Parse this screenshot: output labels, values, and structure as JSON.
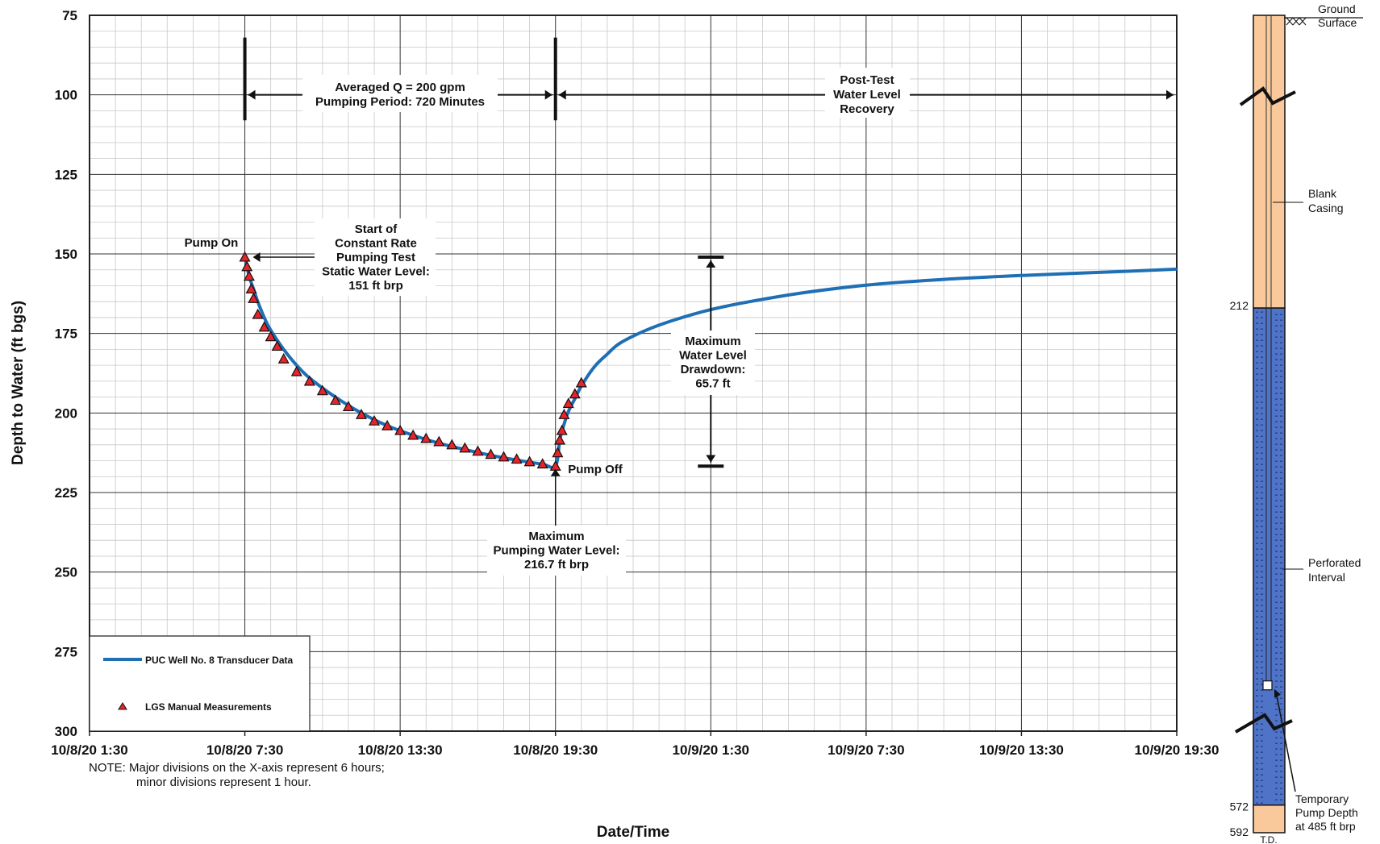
{
  "chart_data": {
    "type": "line",
    "title": "",
    "xlabel": "Date/Time",
    "ylabel": "Depth to Water (ft bgs)",
    "x_unit": "datetime",
    "xlim": [
      "2020-10-08T01:30",
      "2020-10-09T19:30"
    ],
    "ylim": [
      75,
      300
    ],
    "y_inverted": true,
    "grid": true,
    "x_ticks": [
      "10/8/20 1:30",
      "10/8/20 7:30",
      "10/8/20 13:30",
      "10/8/20 19:30",
      "10/9/20 1:30",
      "10/9/20 7:30",
      "10/9/20 13:30",
      "10/9/20 19:30"
    ],
    "y_ticks": [
      "75",
      "100",
      "125",
      "150",
      "175",
      "200",
      "225",
      "250",
      "275",
      "300"
    ],
    "series": [
      {
        "name": "PUC Well No. 8 Transducer Data",
        "style": "line",
        "color": "#1f6fb5",
        "x": [
          "2020-10-08T07:30",
          "2020-10-08T07:40",
          "2020-10-08T07:50",
          "2020-10-08T08:00",
          "2020-10-08T08:15",
          "2020-10-08T08:30",
          "2020-10-08T09:00",
          "2020-10-08T09:30",
          "2020-10-08T10:00",
          "2020-10-08T11:00",
          "2020-10-08T12:00",
          "2020-10-08T13:00",
          "2020-10-08T14:00",
          "2020-10-08T15:00",
          "2020-10-08T16:00",
          "2020-10-08T17:00",
          "2020-10-08T18:00",
          "2020-10-08T19:00",
          "2020-10-08T19:30",
          "2020-10-08T19:40",
          "2020-10-08T19:50",
          "2020-10-08T20:00",
          "2020-10-08T20:15",
          "2020-10-08T20:30",
          "2020-10-08T21:00",
          "2020-10-08T21:30",
          "2020-10-08T22:00",
          "2020-10-08T23:00",
          "2020-10-09T00:00",
          "2020-10-09T01:30",
          "2020-10-09T03:00",
          "2020-10-09T05:00",
          "2020-10-09T07:30",
          "2020-10-09T10:30",
          "2020-10-09T13:30",
          "2020-10-09T16:30",
          "2020-10-09T19:30"
        ],
        "y": [
          151,
          157,
          161,
          165,
          170,
          174,
          180,
          185,
          189,
          195,
          200,
          204,
          207,
          209.5,
          211.5,
          213.3,
          214.8,
          216.1,
          216.7,
          208.5,
          203.5,
          199.5,
          195.5,
          191.5,
          185.5,
          181.5,
          178,
          174,
          171,
          167.5,
          165,
          162.3,
          159.8,
          158,
          156.8,
          155.8,
          154.8
        ]
      },
      {
        "name": "LGS Manual Measurements",
        "style": "marker",
        "color": "#e8232a",
        "x": [
          "2020-10-08T07:30",
          "2020-10-08T07:35",
          "2020-10-08T07:40",
          "2020-10-08T07:45",
          "2020-10-08T07:50",
          "2020-10-08T08:00",
          "2020-10-08T08:15",
          "2020-10-08T08:30",
          "2020-10-08T08:45",
          "2020-10-08T09:00",
          "2020-10-08T09:30",
          "2020-10-08T10:00",
          "2020-10-08T10:30",
          "2020-10-08T11:00",
          "2020-10-08T11:30",
          "2020-10-08T12:00",
          "2020-10-08T12:30",
          "2020-10-08T13:00",
          "2020-10-08T13:30",
          "2020-10-08T14:00",
          "2020-10-08T14:30",
          "2020-10-08T15:00",
          "2020-10-08T15:30",
          "2020-10-08T16:00",
          "2020-10-08T16:30",
          "2020-10-08T17:00",
          "2020-10-08T17:30",
          "2020-10-08T18:00",
          "2020-10-08T18:30",
          "2020-10-08T19:00",
          "2020-10-08T19:30",
          "2020-10-08T19:35",
          "2020-10-08T19:40",
          "2020-10-08T19:45",
          "2020-10-08T19:50",
          "2020-10-08T20:00",
          "2020-10-08T20:15",
          "2020-10-08T20:30"
        ],
        "y": [
          151,
          154,
          157,
          161,
          164,
          169,
          173,
          176,
          179,
          183,
          187,
          190,
          193,
          196,
          198,
          200.5,
          202.5,
          204,
          205.5,
          207,
          208,
          209,
          210,
          211,
          212,
          213,
          213.8,
          214.5,
          215.3,
          216,
          216.7,
          212.5,
          208.5,
          205.5,
          200.5,
          197,
          194,
          190.5
        ]
      }
    ],
    "legend": {
      "placement": "bottom-left",
      "entries": [
        "PUC Well No. 8 Transducer Data",
        "LGS Manual Measurements"
      ]
    },
    "annotations": {
      "pump_on": "Pump On",
      "start_test": [
        "Start of",
        "Constant Rate",
        "Pumping Test",
        "Static Water Level:",
        "151 ft brp"
      ],
      "pump_off": "Pump Off",
      "max_pumping": [
        "Maximum",
        "Pumping Water Level:",
        "216.7 ft brp"
      ],
      "averaged_q": [
        "Averaged Q = 200 gpm",
        "Pumping Period: 720 Minutes"
      ],
      "post_test": [
        "Post-Test",
        "Water Level",
        "Recovery"
      ],
      "max_drawdown": [
        "Maximum",
        "Water Level",
        "Drawdown:",
        "65.7 ft"
      ]
    },
    "note": [
      "NOTE:  Major divisions on the X-axis represent 6 hours;",
      "minor divisions represent 1 hour."
    ]
  },
  "well_diagram": {
    "ground_surface": [
      "Ground",
      "Surface"
    ],
    "blank_casing": [
      "Blank",
      "Casing"
    ],
    "perforated_interval": [
      "Perforated",
      "Interval"
    ],
    "pump_depth": [
      "Temporary",
      "Pump Depth",
      "at 485 ft brp"
    ],
    "depth_labels": [
      "212",
      "572",
      "592"
    ],
    "td_label": "T.D.",
    "colors": {
      "casing": "#f9c99b",
      "perforated": "#4f73c6",
      "outline": "#111111"
    }
  }
}
